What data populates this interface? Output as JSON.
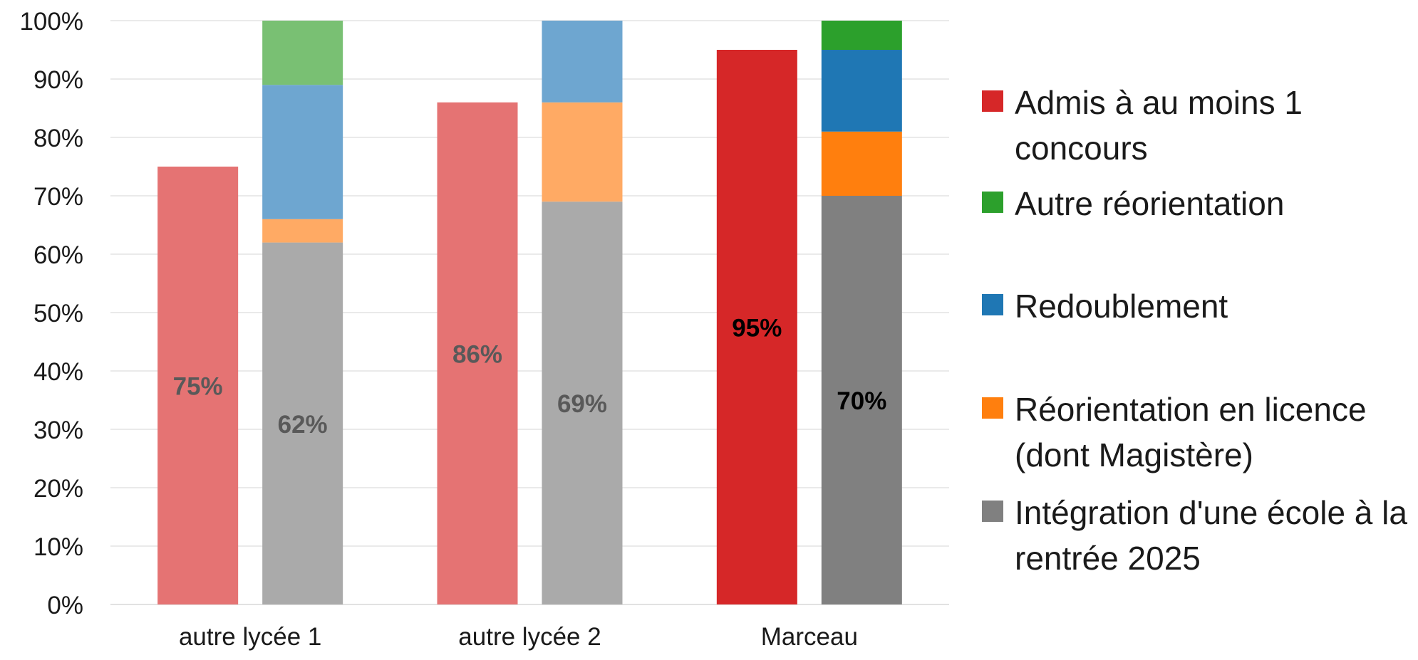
{
  "chart_data": {
    "type": "bar",
    "stacked": true,
    "categories": [
      "autre lycée 1",
      "autre lycée 2",
      "Marceau"
    ],
    "ylim": [
      0,
      100
    ],
    "yticks": [
      "0%",
      "10%",
      "20%",
      "30%",
      "40%",
      "50%",
      "60%",
      "70%",
      "80%",
      "90%",
      "100%"
    ],
    "grid": true,
    "legend_position": "right",
    "admis": {
      "name": "Admis à au moins 1 concours",
      "values": [
        75,
        86,
        95
      ],
      "labels": [
        "75%",
        "86%",
        "95%"
      ],
      "colors": [
        "#e57373",
        "#e57373",
        "#d62728"
      ]
    },
    "outcome_series": [
      {
        "name": "Intégration d'une école à la rentrée 2025",
        "values": [
          62,
          69,
          70
        ],
        "labels": [
          "62%",
          "69%",
          "70%"
        ],
        "colors": [
          "#aaaaaa",
          "#aaaaaa",
          "#808080"
        ]
      },
      {
        "name": "Réorientation en licence (dont Magistère)",
        "values": [
          4,
          17,
          11
        ],
        "colors": [
          "#ffaa64",
          "#ffaa64",
          "#ff7f0e"
        ]
      },
      {
        "name": "Redoublement",
        "values": [
          23,
          14,
          14
        ],
        "colors": [
          "#6ea6d0",
          "#6ea6d0",
          "#1f77b4"
        ]
      },
      {
        "name": "Autre réorientation",
        "values": [
          11,
          0,
          5
        ],
        "colors": [
          "#79c073",
          "#79c073",
          "#2ca02c"
        ]
      }
    ],
    "label_colors": [
      "#595959",
      "#595959",
      "#000000"
    ]
  },
  "legend": [
    {
      "label": "Admis à au moins 1 concours",
      "color": "#d62728"
    },
    {
      "label": "Autre réorientation",
      "color": "#2ca02c"
    },
    {
      "label": "Redoublement",
      "color": "#1f77b4"
    },
    {
      "label": "Réorientation en licence (dont Magistère)",
      "color": "#ff7f0e"
    },
    {
      "label": "Intégration d'une école à la rentrée 2025",
      "color": "#808080"
    }
  ]
}
